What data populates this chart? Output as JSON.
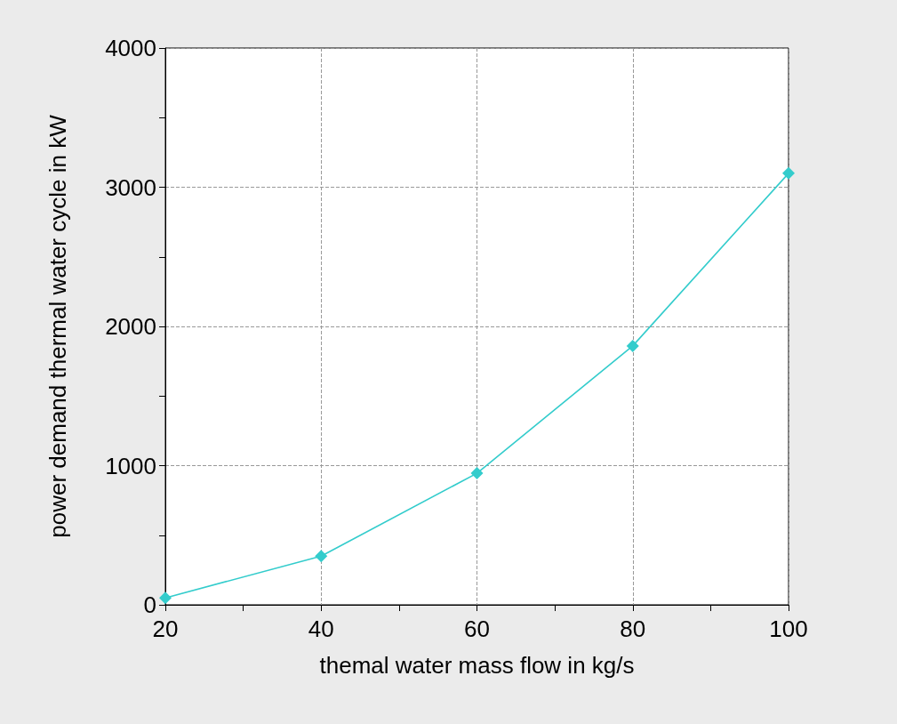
{
  "chart_data": {
    "type": "line",
    "xlabel": "themal water mass flow in kg/s",
    "ylabel": "power demand thermal water cycle in kW",
    "x": [
      20,
      40,
      60,
      80,
      100
    ],
    "series": [
      {
        "color": "#33cccc",
        "values": [
          50,
          350,
          945,
          1860,
          3100
        ]
      }
    ],
    "xlim": [
      20,
      100
    ],
    "ylim": [
      0,
      4000
    ],
    "xticks": [
      20,
      {
        "value": 30,
        "label": null
      },
      40,
      {
        "value": 50,
        "label": null
      },
      60,
      {
        "value": 70,
        "label": null
      },
      80,
      {
        "value": 90,
        "label": null
      },
      100
    ],
    "yticks": [
      0,
      {
        "value": 500,
        "label": null
      },
      1000,
      {
        "value": 1500,
        "label": null
      },
      2000,
      {
        "value": 2500,
        "label": null
      },
      3000,
      {
        "value": 3500,
        "label": null
      },
      4000
    ],
    "grid": true,
    "marker": "diamond",
    "line_style": "solid"
  }
}
